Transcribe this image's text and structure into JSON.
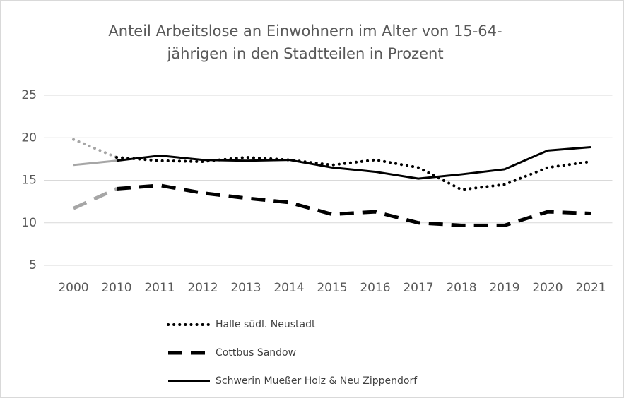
{
  "chart_data": {
    "type": "line",
    "title": [
      "Anteil Arbeitslose an Einwohnern im Alter von  15-64-",
      "jährigen in den Stadtteilen in Prozent"
    ],
    "categories": [
      "2000",
      "2010",
      "2011",
      "2012",
      "2013",
      "2014",
      "2015",
      "2016",
      "2017",
      "2018",
      "2019",
      "2020",
      "2021"
    ],
    "series": [
      {
        "name": "Halle südl. Neustadt",
        "color": "#000000",
        "dash": "dotted",
        "values": [
          19.8,
          17.7,
          17.3,
          17.2,
          17.7,
          17.4,
          16.8,
          17.4,
          16.5,
          13.9,
          14.5,
          16.5,
          17.2
        ]
      },
      {
        "name": "Cottbus Sandow",
        "color": "#000000",
        "dash": "dashed",
        "values": [
          11.7,
          14.0,
          14.4,
          13.5,
          12.9,
          12.4,
          11.0,
          11.3,
          10.0,
          9.7,
          9.7,
          11.3,
          11.1
        ]
      },
      {
        "name": "Schwerin Mueßer Holz & Neu Zippendorf",
        "color": "#000000",
        "dash": "solid",
        "values": [
          16.8,
          17.3,
          17.9,
          17.4,
          17.3,
          17.4,
          16.5,
          16.0,
          15.2,
          15.7,
          16.3,
          18.5,
          18.9
        ]
      }
    ],
    "ylim": [
      5,
      25
    ],
    "yticks": [
      5,
      10,
      15,
      20,
      25
    ],
    "grid": true,
    "legend": "bottom"
  }
}
